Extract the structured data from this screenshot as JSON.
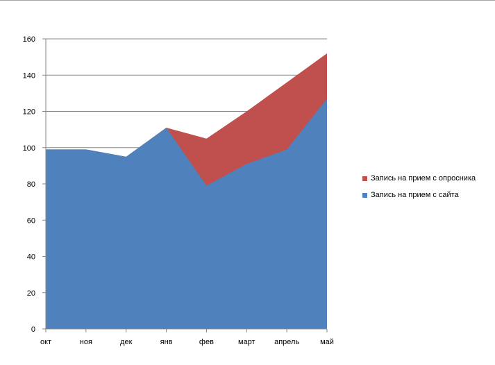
{
  "chart_data": {
    "type": "area",
    "stacked": true,
    "categories": [
      "окт",
      "ноя",
      "дек",
      "янв",
      "фев",
      "март",
      "апрель",
      "май"
    ],
    "series": [
      {
        "name": "Запись на прием с сайта",
        "color": "#4f81bd",
        "values": [
          99,
          99,
          95,
          111,
          79,
          91,
          99,
          127
        ]
      },
      {
        "name": "Запись на прием с опросника",
        "color": "#c0504d",
        "values": [
          0,
          0,
          0,
          0,
          26,
          29,
          37,
          25
        ]
      }
    ],
    "ylim": [
      0,
      160
    ],
    "yticks": [
      0,
      20,
      40,
      60,
      80,
      100,
      120,
      140,
      160
    ],
    "grid": true,
    "legend_position": "right",
    "title": "",
    "xlabel": "",
    "ylabel": ""
  }
}
